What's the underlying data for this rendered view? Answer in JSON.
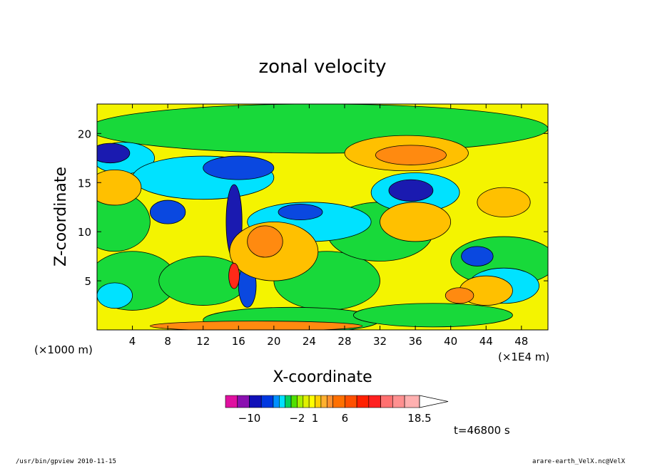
{
  "chart_data": {
    "type": "heatmap",
    "title": "zonal velocity",
    "xlabel": "X-coordinate",
    "ylabel": "Z-coordinate",
    "x_unit_left": "(×1000 m)",
    "x_unit_right": "(×1E4 m)",
    "xlim": [
      0,
      51
    ],
    "ylim": [
      0,
      23
    ],
    "x_ticks": [
      4,
      8,
      12,
      16,
      20,
      24,
      28,
      32,
      36,
      40,
      44,
      48
    ],
    "y_ticks": [
      5,
      10,
      15,
      20
    ],
    "colorbar": {
      "levels": [
        -14,
        -12,
        -10,
        -8,
        -6,
        -5,
        -4,
        -3,
        -2,
        -1,
        0,
        1,
        2,
        3,
        4,
        6,
        8,
        10,
        12,
        14,
        16,
        18.5
      ],
      "colors": [
        "#e010a0",
        "#8a10b0",
        "#1010b8",
        "#0038e0",
        "#0090ff",
        "#00e0ff",
        "#00d060",
        "#50e000",
        "#a8f000",
        "#e0f000",
        "#ffff00",
        "#ffd000",
        "#ffb030",
        "#ff9030",
        "#ff7000",
        "#ff5000",
        "#ff2000",
        "#ff2020",
        "#ff7070",
        "#ff9090",
        "#ffb0b0"
      ],
      "labels": [
        "−10",
        "−2",
        "1",
        "6",
        "18.5"
      ],
      "label_values": [
        -10,
        -2,
        1,
        6,
        18.5
      ]
    },
    "field": {
      "palette": {
        "darkblue": "#1a1ab0",
        "blue": "#0a48e0",
        "cyan": "#00e2ff",
        "green": "#18d93a",
        "yellow": "#f4f400",
        "gold": "#ffc000",
        "orange": "#ff8a10",
        "red": "#ff2a18"
      },
      "background": "yellow",
      "blobs": [
        {
          "x": 25,
          "z": 20.5,
          "rx": 26,
          "rz": 2.5,
          "c": "green"
        },
        {
          "x": 2,
          "z": 11,
          "rx": 4,
          "rz": 3,
          "c": "green"
        },
        {
          "x": 4,
          "z": 5,
          "rx": 5,
          "rz": 3,
          "c": "green"
        },
        {
          "x": 12,
          "z": 5,
          "rx": 5,
          "rz": 2.5,
          "c": "green"
        },
        {
          "x": 26,
          "z": 5,
          "rx": 6,
          "rz": 3,
          "c": "green"
        },
        {
          "x": 32,
          "z": 10,
          "rx": 6,
          "rz": 3,
          "c": "green"
        },
        {
          "x": 46,
          "z": 7,
          "rx": 6,
          "rz": 2.5,
          "c": "green"
        },
        {
          "x": 22,
          "z": 1,
          "rx": 10,
          "rz": 1.3,
          "c": "green"
        },
        {
          "x": 38,
          "z": 1.5,
          "rx": 9,
          "rz": 1.2,
          "c": "green"
        },
        {
          "x": 3,
          "z": 17.5,
          "rx": 3.5,
          "rz": 1.6,
          "c": "cyan"
        },
        {
          "x": 12,
          "z": 15.5,
          "rx": 8,
          "rz": 2.2,
          "c": "cyan"
        },
        {
          "x": 24,
          "z": 11,
          "rx": 7,
          "rz": 2,
          "c": "cyan"
        },
        {
          "x": 46,
          "z": 4.5,
          "rx": 4,
          "rz": 1.8,
          "c": "cyan"
        },
        {
          "x": 36,
          "z": 14,
          "rx": 5,
          "rz": 2,
          "c": "cyan"
        },
        {
          "x": 2,
          "z": 3.5,
          "rx": 2,
          "rz": 1.3,
          "c": "cyan"
        },
        {
          "x": 1.5,
          "z": 18,
          "rx": 2.2,
          "rz": 1,
          "c": "darkblue"
        },
        {
          "x": 16,
          "z": 16.5,
          "rx": 4,
          "rz": 1.2,
          "c": "blue"
        },
        {
          "x": 15.5,
          "z": 11,
          "rx": 0.9,
          "rz": 3.8,
          "c": "darkblue"
        },
        {
          "x": 17,
          "z": 4.5,
          "rx": 1,
          "rz": 2.2,
          "c": "blue"
        },
        {
          "x": 35.5,
          "z": 14.2,
          "rx": 2.5,
          "rz": 1.1,
          "c": "darkblue"
        },
        {
          "x": 43,
          "z": 7.5,
          "rx": 1.8,
          "rz": 1,
          "c": "blue"
        },
        {
          "x": 8,
          "z": 12,
          "rx": 2,
          "rz": 1.2,
          "c": "blue"
        },
        {
          "x": 23,
          "z": 12,
          "rx": 2.5,
          "rz": 0.8,
          "c": "blue"
        },
        {
          "x": 35,
          "z": 18,
          "rx": 7,
          "rz": 1.8,
          "c": "gold"
        },
        {
          "x": 2,
          "z": 14.5,
          "rx": 3,
          "rz": 1.8,
          "c": "gold"
        },
        {
          "x": 20,
          "z": 8,
          "rx": 5,
          "rz": 3,
          "c": "gold"
        },
        {
          "x": 36,
          "z": 11,
          "rx": 4,
          "rz": 2,
          "c": "gold"
        },
        {
          "x": 44,
          "z": 4,
          "rx": 3,
          "rz": 1.5,
          "c": "gold"
        },
        {
          "x": 46,
          "z": 13,
          "rx": 3,
          "rz": 1.5,
          "c": "gold"
        },
        {
          "x": 35.5,
          "z": 17.8,
          "rx": 4,
          "rz": 1,
          "c": "orange"
        },
        {
          "x": 19,
          "z": 9,
          "rx": 2,
          "rz": 1.6,
          "c": "orange"
        },
        {
          "x": 41,
          "z": 3.5,
          "rx": 1.6,
          "rz": 0.8,
          "c": "orange"
        },
        {
          "x": 15.5,
          "z": 5.5,
          "rx": 0.6,
          "rz": 1.3,
          "c": "red"
        },
        {
          "x": 18,
          "z": 0.4,
          "rx": 12,
          "rz": 0.5,
          "c": "orange"
        }
      ]
    }
  },
  "time_label": "t=46800 s",
  "footer_left": "/usr/bin/gpview   2010-11-15",
  "footer_right": "arare-earth_VelX.nc@VelX"
}
